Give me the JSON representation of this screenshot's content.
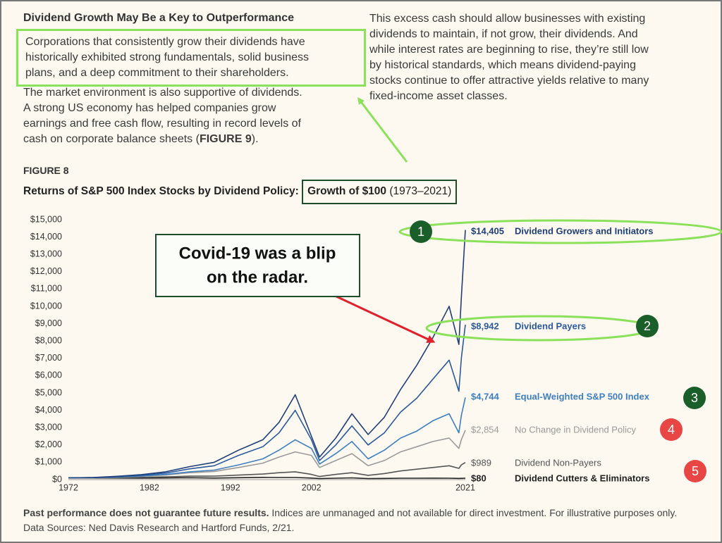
{
  "heading": "Dividend Growth May Be a Key to Outperformance",
  "paragraph_1": {
    "lines": [
      "Corporations that consistently grow their dividends have",
      "historically exhibited strong fundamentals, solid business",
      "plans, and a deep commitment to their shareholders."
    ]
  },
  "paragraph_2": {
    "lines": [
      "The market environment is also supportive of dividends.",
      "A strong US economy has helped companies grow",
      "earnings and free cash flow, resulting in record levels of"
    ],
    "last_line": {
      "before": "cash on corporate balance sheets (",
      "bold": "FIGURE 9",
      "after": ")."
    }
  },
  "paragraph_3": {
    "lines": [
      "This excess cash should allow businesses with existing",
      "dividends to maintain, if not grow, their dividends. And",
      "while interest rates are beginning to rise, they’re still low",
      "by historical standards, which means dividend-paying",
      "stocks continue to offer attractive yields relative to many",
      "fixed-income asset classes."
    ]
  },
  "figure_label": "FIGURE 8",
  "callout": {
    "lines": [
      "Covid-19 was a blip",
      "on the radar."
    ]
  },
  "badges": [
    "1",
    "2",
    "3",
    "4",
    "5"
  ],
  "footer": {
    "bold": "Past performance does not guarantee future results.",
    "text": " Indices are unmanaged and not available for direct investment. For illustrative purposes only. Data Sources: Ned Davis Research and Hartford Funds, 2/21."
  },
  "chart_data": {
    "type": "line",
    "title": "Returns of S&P 500 Index Stocks by Dividend Policy: ",
    "title_highlight": "Growth of $100",
    "title_years": " (1973–2021)",
    "x": [
      1972,
      1975,
      1978,
      1981,
      1984,
      1987,
      1990,
      1993,
      1996,
      1998,
      2000,
      2002,
      2003,
      2005,
      2007,
      2009,
      2011,
      2013,
      2015,
      2017,
      2019,
      2020.2,
      2020.5,
      2021
    ],
    "xlim": [
      1972,
      2021
    ],
    "xticks": [
      1972,
      1982,
      1992,
      2002,
      2021
    ],
    "ylim": [
      0,
      15000
    ],
    "yticks": [
      {
        "value": 0,
        "label": "$0"
      },
      {
        "value": 1000,
        "label": "$1,000"
      },
      {
        "value": 2000,
        "label": "$2,000"
      },
      {
        "value": 3000,
        "label": "$3,000"
      },
      {
        "value": 4000,
        "label": "$4,000"
      },
      {
        "value": 5000,
        "label": "$5,000"
      },
      {
        "value": 6000,
        "label": "$6,000"
      },
      {
        "value": 7000,
        "label": "$7,000"
      },
      {
        "value": 8000,
        "label": "$8,000"
      },
      {
        "value": 9000,
        "label": "$9,000"
      },
      {
        "value": 10000,
        "label": "$10,000"
      },
      {
        "value": 11000,
        "label": "$11,000"
      },
      {
        "value": 12000,
        "label": "$12,000"
      },
      {
        "value": 13000,
        "label": "$13,000"
      },
      {
        "value": 14000,
        "label": "$14,000"
      },
      {
        "value": 15000,
        "label": "$15,000"
      }
    ],
    "series": [
      {
        "name": "Dividend Growers and Initiators",
        "color": "#1f3f7a",
        "values": [
          100,
          120,
          190,
          290,
          450,
          750,
          1000,
          1700,
          2300,
          3300,
          4900,
          2500,
          1300,
          2400,
          3800,
          2600,
          3600,
          5200,
          6600,
          8200,
          10000,
          7800,
          10500,
          14405
        ],
        "value_labels": [
          null,
          null,
          null,
          null,
          null,
          null,
          null,
          null,
          null,
          null,
          null,
          null,
          null,
          null,
          null,
          null,
          null,
          null,
          null,
          null,
          null,
          null,
          null,
          "$14,405"
        ]
      },
      {
        "name": "Dividend Payers",
        "color": "#2a5b9e",
        "values": [
          100,
          115,
          170,
          250,
          380,
          620,
          800,
          1400,
          1900,
          2700,
          4000,
          2300,
          1100,
          2000,
          3100,
          2000,
          2700,
          3900,
          4700,
          5800,
          6900,
          5100,
          7000,
          8942
        ],
        "value_labels": [
          null,
          null,
          null,
          null,
          null,
          null,
          null,
          null,
          null,
          null,
          null,
          null,
          null,
          null,
          null,
          null,
          null,
          null,
          null,
          null,
          null,
          null,
          null,
          "$8,942"
        ]
      },
      {
        "name": "Equal-Weighted S&P 500 Index",
        "color": "#3d7fc1",
        "values": [
          100,
          110,
          150,
          210,
          300,
          450,
          550,
          850,
          1200,
          1700,
          2300,
          1800,
          900,
          1500,
          2200,
          1200,
          1700,
          2400,
          2800,
          3400,
          3800,
          2700,
          3700,
          4744
        ],
        "value_labels": [
          null,
          null,
          null,
          null,
          null,
          null,
          null,
          null,
          null,
          null,
          null,
          null,
          null,
          null,
          null,
          null,
          null,
          null,
          null,
          null,
          null,
          null,
          null,
          "$4,744"
        ]
      },
      {
        "name": "No Change in Dividend Policy",
        "color": "#9a9a9a",
        "values": [
          100,
          108,
          140,
          190,
          270,
          400,
          470,
          700,
          950,
          1300,
          1600,
          1400,
          700,
          1100,
          1500,
          800,
          1100,
          1600,
          1900,
          2200,
          2400,
          1800,
          2300,
          2854
        ],
        "value_labels": [
          null,
          null,
          null,
          null,
          null,
          null,
          null,
          null,
          null,
          null,
          null,
          null,
          null,
          null,
          null,
          null,
          null,
          null,
          null,
          null,
          null,
          null,
          null,
          "$2,854"
        ]
      },
      {
        "name": "Dividend Non-Payers",
        "color": "#555555",
        "values": [
          100,
          100,
          110,
          130,
          160,
          200,
          200,
          260,
          320,
          400,
          450,
          300,
          180,
          300,
          400,
          250,
          350,
          500,
          600,
          700,
          800,
          650,
          850,
          989
        ],
        "value_labels": [
          null,
          null,
          null,
          null,
          null,
          null,
          null,
          null,
          null,
          null,
          null,
          null,
          null,
          null,
          null,
          null,
          null,
          null,
          null,
          null,
          null,
          null,
          null,
          "$989"
        ]
      },
      {
        "name": "Dividend Cutters & Eliminators",
        "color": "#222222",
        "values": [
          100,
          95,
          90,
          85,
          95,
          110,
          90,
          110,
          130,
          120,
          120,
          90,
          60,
          80,
          100,
          60,
          70,
          80,
          80,
          85,
          80,
          70,
          75,
          80
        ],
        "value_labels": [
          null,
          null,
          null,
          null,
          null,
          null,
          null,
          null,
          null,
          null,
          null,
          null,
          null,
          null,
          null,
          null,
          null,
          null,
          null,
          null,
          null,
          null,
          null,
          "$80"
        ]
      }
    ]
  }
}
